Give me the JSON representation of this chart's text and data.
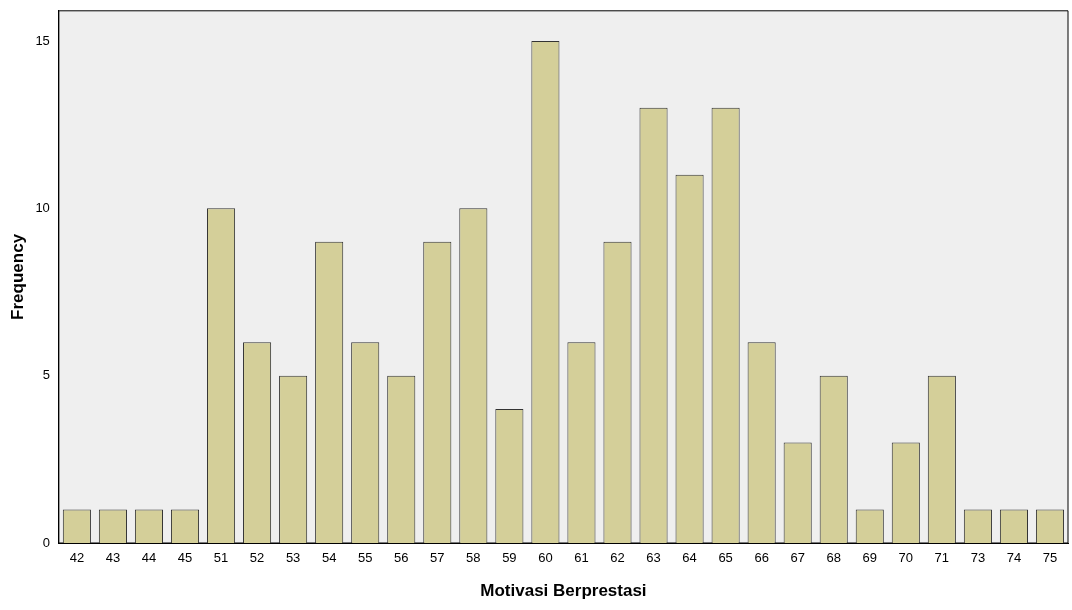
{
  "chart_data": {
    "type": "bar",
    "xlabel": "Motivasi Berprestasi",
    "ylabel": "Frequency",
    "categories": [
      "42",
      "43",
      "44",
      "45",
      "51",
      "52",
      "53",
      "54",
      "55",
      "56",
      "57",
      "58",
      "59",
      "60",
      "61",
      "62",
      "63",
      "64",
      "65",
      "66",
      "67",
      "68",
      "69",
      "70",
      "71",
      "73",
      "74",
      "75"
    ],
    "values": [
      1,
      1,
      1,
      1,
      10,
      6,
      5,
      9,
      6,
      5,
      9,
      10,
      4,
      15,
      6,
      9,
      13,
      11,
      13,
      6,
      3,
      5,
      1,
      3,
      5,
      1,
      1,
      1
    ],
    "color": "#d4cf99",
    "ylim": [
      0,
      15.9
    ],
    "yticks": [
      0,
      5,
      10,
      15
    ],
    "grid": false,
    "legend": false
  }
}
